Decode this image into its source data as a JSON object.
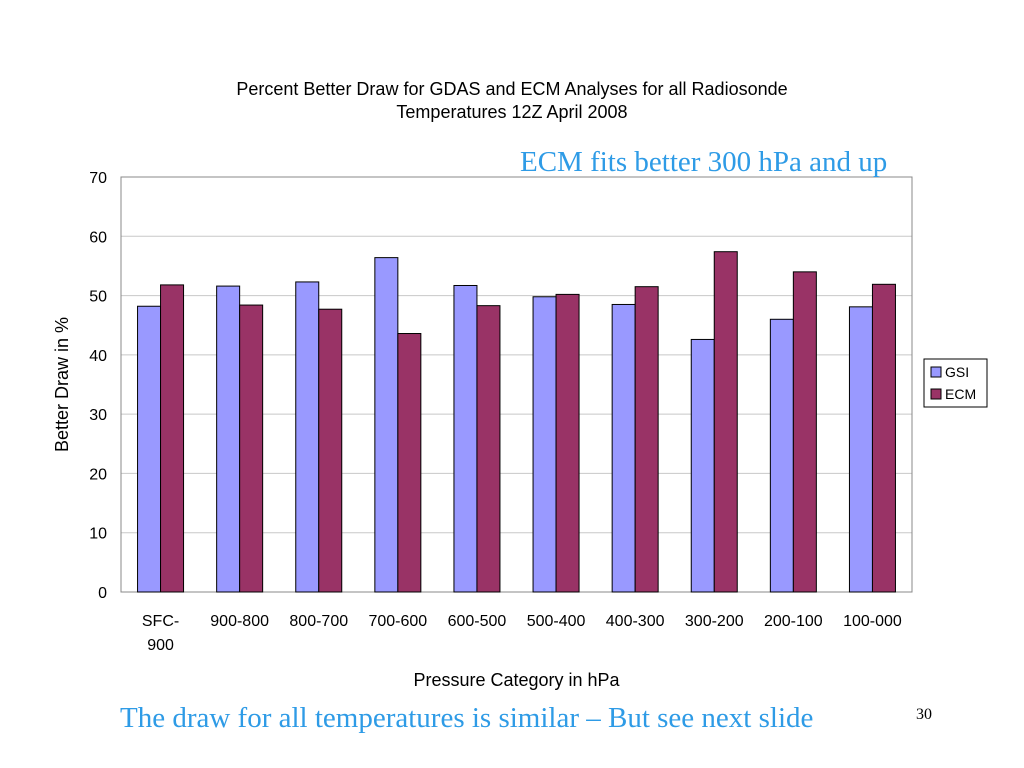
{
  "slide": {
    "callout_top": "ECM fits better 300 hPa and up",
    "callout_bottom": "The draw for all temperatures is similar – But see next slide",
    "slide_number": "30"
  },
  "chart_data": {
    "type": "bar",
    "title_lines": [
      "Percent Better Draw for GDAS and ECM Analyses for all Radiosonde",
      "Temperatures 12Z April 2008"
    ],
    "xlabel": "Pressure Category in hPa",
    "ylabel": "Better Draw in %",
    "ylim": [
      0,
      70
    ],
    "yticks": [
      0,
      10,
      20,
      30,
      40,
      50,
      60,
      70
    ],
    "categories": [
      [
        "SFC-",
        "900"
      ],
      [
        "900-800"
      ],
      [
        "800-700"
      ],
      [
        "700-600"
      ],
      [
        "600-500"
      ],
      [
        "500-400"
      ],
      [
        "400-300"
      ],
      [
        "300-200"
      ],
      [
        "200-100"
      ],
      [
        "100-000"
      ]
    ],
    "series": [
      {
        "name": "GSI",
        "color": "#9999ff",
        "values": [
          48.2,
          51.6,
          52.3,
          56.4,
          51.7,
          49.8,
          48.5,
          42.6,
          46.0,
          48.1
        ]
      },
      {
        "name": "ECM",
        "color": "#993366",
        "values": [
          51.8,
          48.4,
          47.7,
          43.6,
          48.3,
          50.2,
          51.5,
          57.4,
          54.0,
          51.9
        ]
      }
    ],
    "grid": true,
    "legend_position": "right"
  }
}
